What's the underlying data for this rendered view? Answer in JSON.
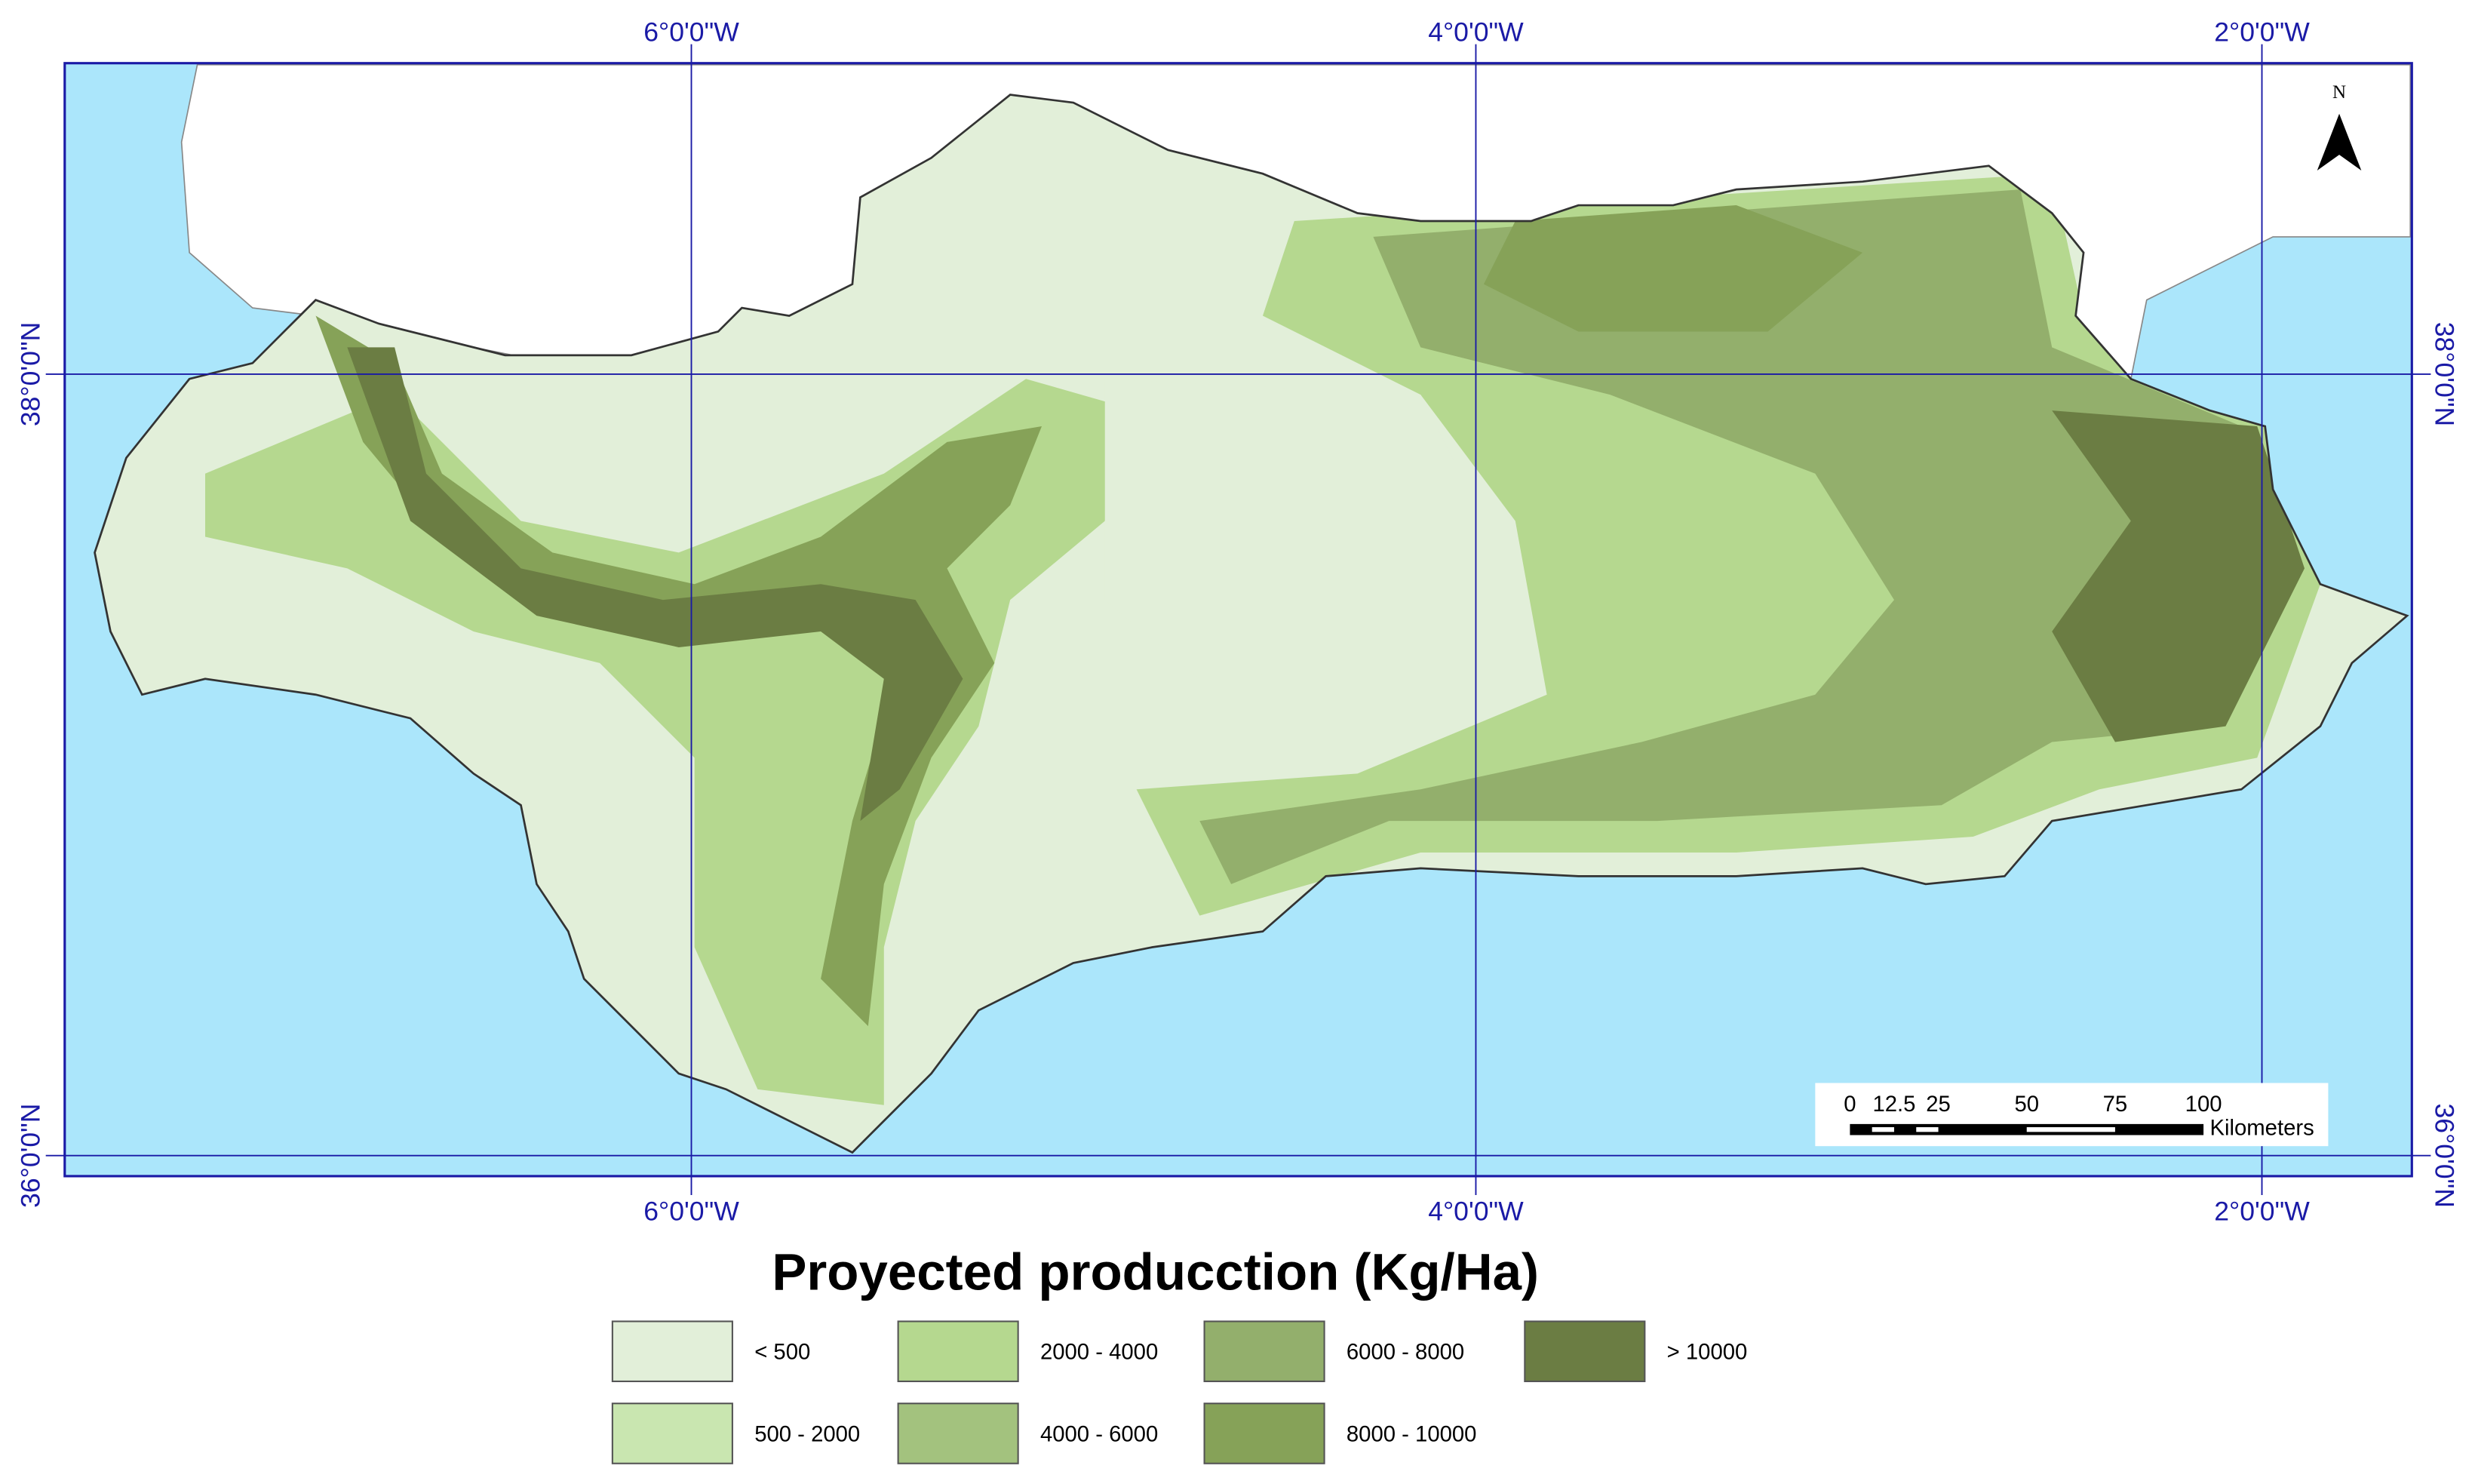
{
  "map": {
    "title": "Proyected producction (Kg/Ha)",
    "graticule": {
      "top": [
        "6°0'0\"W",
        "4°0'0\"W",
        "2°0'0\"W"
      ],
      "bottom": [
        "6°0'0\"W",
        "4°0'0\"W",
        "2°0'0\"W"
      ],
      "left": [
        "38°0'0\"N",
        "36°0'0\"N"
      ],
      "right": [
        "38°0'0\"N",
        "36°0'0\"N"
      ]
    },
    "north": "N",
    "scale_bar": {
      "labels": [
        "0",
        "12.5",
        "25",
        "50",
        "75",
        "100"
      ],
      "unit": "Kilometers"
    },
    "legend": [
      {
        "label": "< 500",
        "color": "#e2efd9"
      },
      {
        "label": "500 - 2000",
        "color": "#c9e6b0"
      },
      {
        "label": "2000 - 4000",
        "color": "#b5d88f"
      },
      {
        "label": "4000 - 6000",
        "color": "#a3c27e"
      },
      {
        "label": "6000 - 8000",
        "color": "#93af6c"
      },
      {
        "label": "8000 - 10000",
        "color": "#86a258"
      },
      {
        "label": "> 10000",
        "color": "#6b7d43"
      }
    ]
  }
}
